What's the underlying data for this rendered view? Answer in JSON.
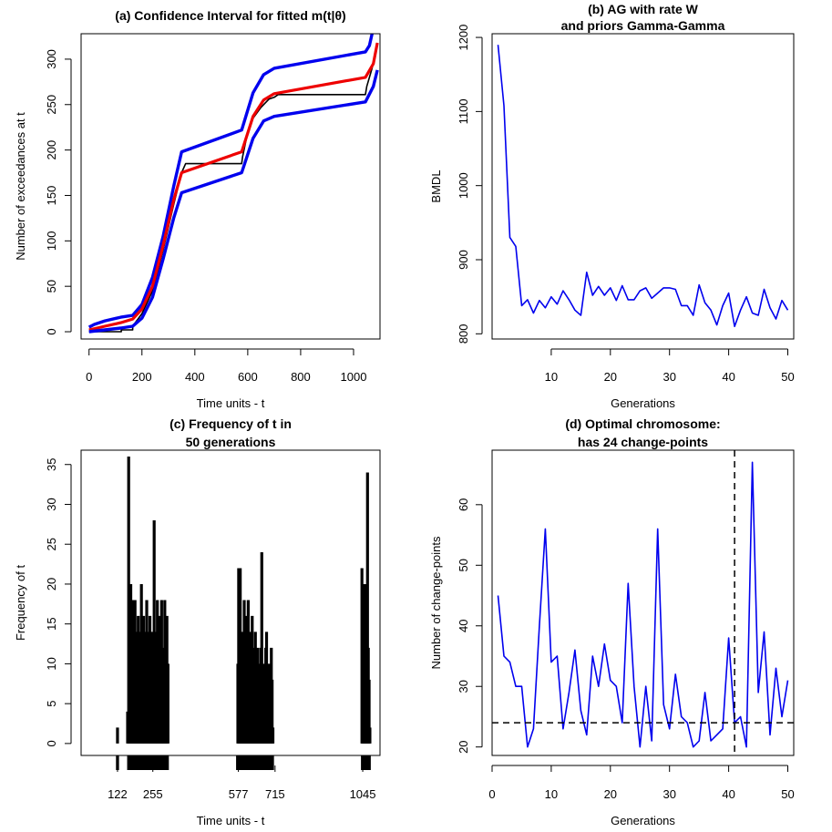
{
  "colors": {
    "blue": "#0000ee",
    "red": "#ee0000",
    "black": "#000000"
  },
  "chart_data": [
    {
      "id": "a",
      "type": "line",
      "title": "(a) Confidence Interval for fitted m(t|θ)",
      "xlabel": "Time units - t",
      "ylabel": "Number of exceedances at t",
      "xlim": [
        -30,
        1100
      ],
      "ylim": [
        -8,
        328
      ],
      "xticks": [
        0,
        200,
        400,
        600,
        800,
        1000
      ],
      "yticks": [
        0,
        50,
        100,
        150,
        200,
        250,
        300
      ],
      "series": [
        {
          "name": "observed",
          "color": "#000000",
          "width": 1.6,
          "x": [
            0,
            122,
            122,
            165,
            165,
            200,
            240,
            280,
            320,
            350,
            365,
            577,
            580,
            600,
            620,
            650,
            680,
            700,
            715,
            1045,
            1050,
            1070,
            1090
          ],
          "y": [
            0,
            0,
            2,
            2,
            6,
            20,
            45,
            90,
            140,
            175,
            185,
            185,
            192,
            220,
            235,
            247,
            256,
            258,
            261,
            261,
            270,
            290,
            318
          ]
        },
        {
          "name": "upper",
          "color": "#0000ee",
          "width": 3.4,
          "x": [
            0,
            20,
            60,
            120,
            165,
            200,
            240,
            280,
            320,
            350,
            577,
            620,
            660,
            700,
            1045,
            1060,
            1070
          ],
          "y": [
            5,
            8,
            12,
            16,
            18,
            30,
            60,
            105,
            160,
            198,
            222,
            263,
            283,
            290,
            308,
            315,
            328
          ]
        },
        {
          "name": "fitted",
          "color": "#ee0000",
          "width": 3.2,
          "x": [
            0,
            60,
            120,
            165,
            200,
            240,
            280,
            320,
            350,
            577,
            620,
            660,
            700,
            1045,
            1075,
            1090
          ],
          "y": [
            2,
            6,
            10,
            14,
            25,
            50,
            95,
            145,
            175,
            198,
            237,
            255,
            262,
            280,
            295,
            318
          ]
        },
        {
          "name": "lower",
          "color": "#0000ee",
          "width": 3.4,
          "x": [
            0,
            60,
            120,
            165,
            200,
            240,
            280,
            320,
            350,
            577,
            620,
            660,
            700,
            1045,
            1075,
            1090
          ],
          "y": [
            0,
            2,
            4,
            6,
            15,
            38,
            80,
            125,
            153,
            175,
            213,
            232,
            237,
            253,
            270,
            288
          ]
        }
      ]
    },
    {
      "id": "b",
      "type": "line",
      "title": [
        "(b) AG with rate W",
        "and priors Gamma-Gamma"
      ],
      "xlabel": "Generations",
      "ylabel": "BMDL",
      "xlim": [
        0,
        51
      ],
      "ylim": [
        793,
        1205
      ],
      "xticks": [
        10,
        20,
        30,
        40,
        50
      ],
      "yticks": [
        800,
        900,
        1000,
        1100,
        1200
      ],
      "series": [
        {
          "name": "BMDL",
          "color": "#0000ee",
          "width": 1.6,
          "x": [
            1,
            2,
            3,
            4,
            5,
            6,
            7,
            8,
            9,
            10,
            11,
            12,
            13,
            14,
            15,
            16,
            17,
            18,
            19,
            20,
            21,
            22,
            23,
            24,
            25,
            26,
            27,
            28,
            29,
            30,
            31,
            32,
            33,
            34,
            35,
            36,
            37,
            38,
            39,
            40,
            41,
            42,
            43,
            44,
            45,
            46,
            47,
            48,
            49,
            50
          ],
          "y": [
            1190,
            1108,
            930,
            918,
            838,
            846,
            828,
            845,
            835,
            850,
            840,
            858,
            846,
            832,
            825,
            883,
            852,
            864,
            852,
            862,
            845,
            865,
            846,
            846,
            858,
            862,
            848,
            855,
            862,
            862,
            860,
            838,
            838,
            825,
            866,
            842,
            832,
            812,
            838,
            855,
            810,
            832,
            850,
            828,
            825,
            860,
            835,
            820,
            845,
            832
          ]
        }
      ]
    },
    {
      "id": "c",
      "type": "bar",
      "title": [
        "(c) Frequency of t in",
        "50 generations"
      ],
      "xlabel": "Time units - t",
      "ylabel": "Frequency of t",
      "xlim": [
        -15,
        1110
      ],
      "ylim": [
        -1.5,
        36.8
      ],
      "xticks": [
        122,
        255,
        577,
        715,
        1045
      ],
      "yticks": [
        0,
        5,
        10,
        15,
        20,
        25,
        30,
        35
      ],
      "rug_ranges": [
        [
          118,
          126
        ],
        [
          160,
          315
        ],
        [
          570,
          710
        ],
        [
          1040,
          1075
        ]
      ],
      "series": [
        {
          "name": "frequency",
          "color": "#000000",
          "x": [
            122,
            160,
            164,
            168,
            172,
            176,
            180,
            184,
            188,
            192,
            196,
            200,
            204,
            208,
            212,
            216,
            220,
            224,
            228,
            232,
            236,
            240,
            244,
            248,
            252,
            256,
            260,
            264,
            268,
            272,
            276,
            280,
            284,
            288,
            292,
            296,
            300,
            304,
            308,
            312,
            575,
            578,
            581,
            584,
            587,
            590,
            593,
            596,
            599,
            602,
            605,
            608,
            611,
            614,
            617,
            620,
            623,
            626,
            629,
            632,
            635,
            638,
            641,
            644,
            647,
            650,
            653,
            656,
            659,
            662,
            665,
            668,
            671,
            674,
            677,
            680,
            683,
            686,
            689,
            692,
            695,
            698,
            701,
            704,
            707,
            1042,
            1045,
            1048,
            1051,
            1054,
            1057,
            1060,
            1063,
            1066,
            1069,
            1072
          ],
          "y": [
            2,
            4,
            36,
            12,
            20,
            10,
            18,
            12,
            18,
            14,
            10,
            16,
            14,
            10,
            20,
            12,
            16,
            14,
            10,
            18,
            14,
            10,
            16,
            12,
            14,
            10,
            28,
            12,
            14,
            18,
            10,
            16,
            14,
            18,
            12,
            10,
            18,
            14,
            16,
            10,
            10,
            22,
            12,
            22,
            8,
            10,
            14,
            12,
            18,
            10,
            16,
            14,
            8,
            18,
            6,
            10,
            14,
            12,
            16,
            8,
            12,
            10,
            14,
            6,
            10,
            12,
            8,
            10,
            4,
            12,
            24,
            6,
            8,
            10,
            4,
            12,
            14,
            8,
            6,
            10,
            4,
            2,
            12,
            8,
            2,
            22,
            18,
            20,
            14,
            20,
            16,
            10,
            34,
            12,
            8,
            2
          ]
        }
      ]
    },
    {
      "id": "d",
      "type": "line",
      "title": [
        "(d) Optimal chromosome:",
        "has 24 change-points"
      ],
      "xlabel": "Generations",
      "ylabel": "Number of change-points",
      "xlim": [
        0,
        51
      ],
      "ylim": [
        18.6,
        69
      ],
      "xticks": [
        0,
        10,
        20,
        30,
        40,
        50
      ],
      "yticks": [
        20,
        30,
        40,
        50,
        60
      ],
      "hline": 24,
      "vline": 41,
      "series": [
        {
          "name": "change-points",
          "color": "#0000ee",
          "width": 1.6,
          "x": [
            1,
            2,
            3,
            4,
            5,
            6,
            7,
            8,
            9,
            10,
            11,
            12,
            13,
            14,
            15,
            16,
            17,
            18,
            19,
            20,
            21,
            22,
            23,
            24,
            25,
            26,
            27,
            28,
            29,
            30,
            31,
            32,
            33,
            34,
            35,
            36,
            37,
            38,
            39,
            40,
            41,
            42,
            43,
            44,
            45,
            46,
            47,
            48,
            49,
            50
          ],
          "y": [
            45,
            35,
            34,
            30,
            30,
            20,
            23,
            40,
            56,
            34,
            35,
            23,
            29,
            36,
            26,
            22,
            35,
            30,
            37,
            31,
            30,
            24,
            47,
            30,
            20,
            30,
            21,
            56,
            27,
            23,
            32,
            25,
            24,
            20,
            21,
            29,
            21,
            22,
            23,
            38,
            24,
            25,
            20,
            67,
            29,
            39,
            22,
            33,
            25,
            31
          ]
        }
      ]
    }
  ]
}
